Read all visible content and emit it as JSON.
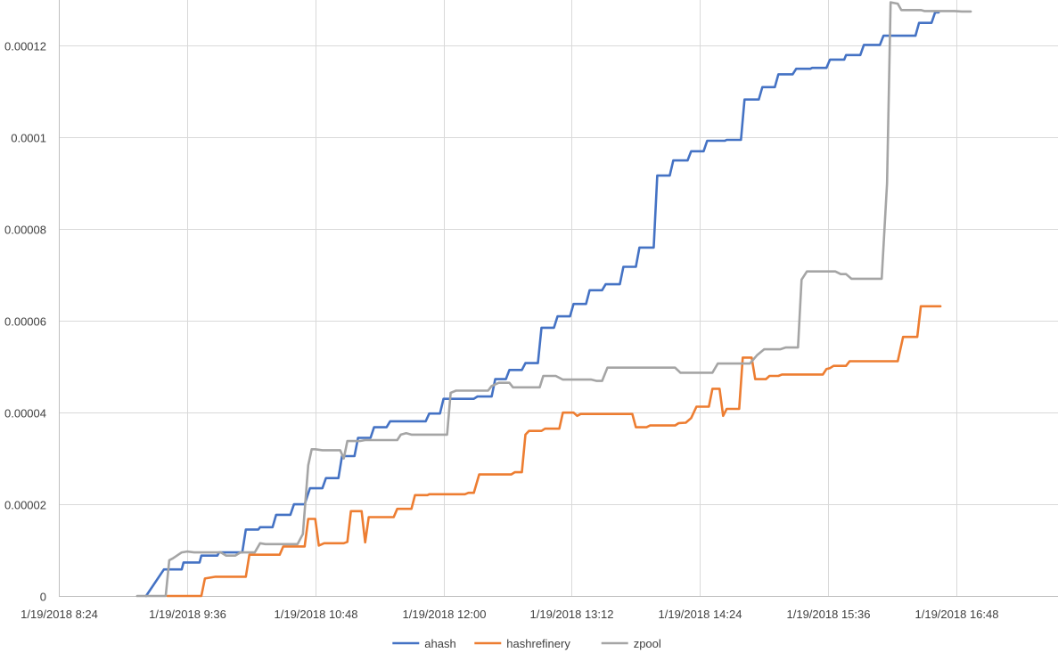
{
  "chart_data": {
    "type": "line",
    "title": "",
    "xlabel": "",
    "ylabel": "",
    "grid": true,
    "legend_position": "bottom",
    "xlim": [
      "1/19/2018 8:24",
      "1/19/2018 17:45"
    ],
    "ylim": [
      0,
      0.00013
    ],
    "y_ticks": [
      {
        "value": 0,
        "label": "0"
      },
      {
        "value": 2e-05,
        "label": "0.00002"
      },
      {
        "value": 4e-05,
        "label": "0.00004"
      },
      {
        "value": 6e-05,
        "label": "0.00006"
      },
      {
        "value": 8e-05,
        "label": "0.00008"
      },
      {
        "value": 0.0001,
        "label": "0.0001"
      },
      {
        "value": 0.00012,
        "label": "0.00012"
      }
    ],
    "x_ticks": [
      {
        "value": "1/19/2018 8:24",
        "label": "1/19/2018 8:24"
      },
      {
        "value": "1/19/2018 9:36",
        "label": "1/19/2018 9:36"
      },
      {
        "value": "1/19/2018 10:48",
        "label": "1/19/2018 10:48"
      },
      {
        "value": "1/19/2018 12:00",
        "label": "1/19/2018 12:00"
      },
      {
        "value": "1/19/2018 13:12",
        "label": "1/19/2018 13:12"
      },
      {
        "value": "1/19/2018 14:24",
        "label": "1/19/2018 14:24"
      },
      {
        "value": "1/19/2018 15:36",
        "label": "1/19/2018 15:36"
      },
      {
        "value": "1/19/2018 16:48",
        "label": "1/19/2018 16:48"
      }
    ],
    "series": [
      {
        "name": "ahash",
        "color": "#4472C4",
        "points": [
          [
            "1/19/2018 9:13",
            0
          ],
          [
            "1/19/2018 9:23",
            5.8e-06
          ],
          [
            "1/19/2018 9:33",
            5.8e-06
          ],
          [
            "1/19/2018 9:34",
            7.3e-06
          ],
          [
            "1/19/2018 9:43",
            7.3e-06
          ],
          [
            "1/19/2018 9:44",
            8.8e-06
          ],
          [
            "1/19/2018 9:53",
            8.8e-06
          ],
          [
            "1/19/2018 9:54",
            9.5e-06
          ],
          [
            "1/19/2018 10:07",
            9.5e-06
          ],
          [
            "1/19/2018 10:09",
            1.45e-05
          ],
          [
            "1/19/2018 10:16",
            1.45e-05
          ],
          [
            "1/19/2018 10:17",
            1.5e-05
          ],
          [
            "1/19/2018 10:24",
            1.5e-05
          ],
          [
            "1/19/2018 10:26",
            1.77e-05
          ],
          [
            "1/19/2018 10:34",
            1.77e-05
          ],
          [
            "1/19/2018 10:36",
            2e-05
          ],
          [
            "1/19/2018 10:42",
            2e-05
          ],
          [
            "1/19/2018 10:45",
            2.35e-05
          ],
          [
            "1/19/2018 10:52",
            2.35e-05
          ],
          [
            "1/19/2018 10:54",
            2.57e-05
          ],
          [
            "1/19/2018 11:01",
            2.57e-05
          ],
          [
            "1/19/2018 11:03",
            3.05e-05
          ],
          [
            "1/19/2018 11:10",
            3.05e-05
          ],
          [
            "1/19/2018 11:12",
            3.45e-05
          ],
          [
            "1/19/2018 11:19",
            3.45e-05
          ],
          [
            "1/19/2018 11:21",
            3.68e-05
          ],
          [
            "1/19/2018 11:28",
            3.68e-05
          ],
          [
            "1/19/2018 11:30",
            3.81e-05
          ],
          [
            "1/19/2018 11:50",
            3.81e-05
          ],
          [
            "1/19/2018 11:52",
            3.98e-05
          ],
          [
            "1/19/2018 11:58",
            3.98e-05
          ],
          [
            "1/19/2018 12:00",
            4.3e-05
          ],
          [
            "1/19/2018 12:17",
            4.3e-05
          ],
          [
            "1/19/2018 12:19",
            4.35e-05
          ],
          [
            "1/19/2018 12:27",
            4.35e-05
          ],
          [
            "1/19/2018 12:29",
            4.73e-05
          ],
          [
            "1/19/2018 12:35",
            4.73e-05
          ],
          [
            "1/19/2018 12:37",
            4.93e-05
          ],
          [
            "1/19/2018 12:44",
            4.93e-05
          ],
          [
            "1/19/2018 12:46",
            5.08e-05
          ],
          [
            "1/19/2018 12:53",
            5.08e-05
          ],
          [
            "1/19/2018 12:55",
            5.85e-05
          ],
          [
            "1/19/2018 13:02",
            5.85e-05
          ],
          [
            "1/19/2018 13:04",
            6.1e-05
          ],
          [
            "1/19/2018 13:11",
            6.1e-05
          ],
          [
            "1/19/2018 13:13",
            6.37e-05
          ],
          [
            "1/19/2018 13:20",
            6.37e-05
          ],
          [
            "1/19/2018 13:22",
            6.67e-05
          ],
          [
            "1/19/2018 13:29",
            6.67e-05
          ],
          [
            "1/19/2018 13:31",
            6.8e-05
          ],
          [
            "1/19/2018 13:39",
            6.8e-05
          ],
          [
            "1/19/2018 13:41",
            7.18e-05
          ],
          [
            "1/19/2018 13:48",
            7.18e-05
          ],
          [
            "1/19/2018 13:50",
            7.6e-05
          ],
          [
            "1/19/2018 13:58",
            7.6e-05
          ],
          [
            "1/19/2018 14:00",
            9.17e-05
          ],
          [
            "1/19/2018 14:07",
            9.17e-05
          ],
          [
            "1/19/2018 14:09",
            9.5e-05
          ],
          [
            "1/19/2018 14:17",
            9.5e-05
          ],
          [
            "1/19/2018 14:19",
            9.7e-05
          ],
          [
            "1/19/2018 14:26",
            9.7e-05
          ],
          [
            "1/19/2018 14:28",
            9.93e-05
          ],
          [
            "1/19/2018 14:38",
            9.93e-05
          ],
          [
            "1/19/2018 14:39",
            9.95e-05
          ],
          [
            "1/19/2018 14:47",
            9.95e-05
          ],
          [
            "1/19/2018 14:49",
            0.0001083
          ],
          [
            "1/19/2018 14:57",
            0.0001083
          ],
          [
            "1/19/2018 14:59",
            0.000111
          ],
          [
            "1/19/2018 15:06",
            0.000111
          ],
          [
            "1/19/2018 15:08",
            0.0001138
          ],
          [
            "1/19/2018 15:16",
            0.0001138
          ],
          [
            "1/19/2018 15:18",
            0.000115
          ],
          [
            "1/19/2018 15:26",
            0.000115
          ],
          [
            "1/19/2018 15:27",
            0.0001152
          ],
          [
            "1/19/2018 15:35",
            0.0001152
          ],
          [
            "1/19/2018 15:37",
            0.000117
          ],
          [
            "1/19/2018 15:45",
            0.000117
          ],
          [
            "1/19/2018 15:46",
            0.000118
          ],
          [
            "1/19/2018 15:54",
            0.000118
          ],
          [
            "1/19/2018 15:56",
            0.0001202
          ],
          [
            "1/19/2018 16:05",
            0.0001202
          ],
          [
            "1/19/2018 16:07",
            0.0001222
          ],
          [
            "1/19/2018 16:25",
            0.0001222
          ],
          [
            "1/19/2018 16:27",
            0.000125
          ],
          [
            "1/19/2018 16:34",
            0.000125
          ],
          [
            "1/19/2018 16:36",
            0.0001273
          ],
          [
            "1/19/2018 16:38",
            0.0001273
          ]
        ]
      },
      {
        "name": "hashrefinery",
        "color": "#ED7D31",
        "points": [
          [
            "1/19/2018 9:25",
            0
          ],
          [
            "1/19/2018 9:44",
            0
          ],
          [
            "1/19/2018 9:46",
            3.8e-06
          ],
          [
            "1/19/2018 9:52",
            4.2e-06
          ],
          [
            "1/19/2018 10:09",
            4.2e-06
          ],
          [
            "1/19/2018 10:11",
            9e-06
          ],
          [
            "1/19/2018 10:28",
            9e-06
          ],
          [
            "1/19/2018 10:30",
            1.08e-05
          ],
          [
            "1/19/2018 10:42",
            1.08e-05
          ],
          [
            "1/19/2018 10:44",
            1.68e-05
          ],
          [
            "1/19/2018 10:48",
            1.68e-05
          ],
          [
            "1/19/2018 10:50",
            1.1e-05
          ],
          [
            "1/19/2018 10:53",
            1.15e-05
          ],
          [
            "1/19/2018 11:04",
            1.15e-05
          ],
          [
            "1/19/2018 11:06",
            1.18e-05
          ],
          [
            "1/19/2018 11:08",
            1.85e-05
          ],
          [
            "1/19/2018 11:14",
            1.85e-05
          ],
          [
            "1/19/2018 11:16",
            1.17e-05
          ],
          [
            "1/19/2018 11:18",
            1.72e-05
          ],
          [
            "1/19/2018 11:32",
            1.72e-05
          ],
          [
            "1/19/2018 11:34",
            1.9e-05
          ],
          [
            "1/19/2018 11:42",
            1.9e-05
          ],
          [
            "1/19/2018 11:44",
            2.2e-05
          ],
          [
            "1/19/2018 11:51",
            2.2e-05
          ],
          [
            "1/19/2018 11:52",
            2.22e-05
          ],
          [
            "1/19/2018 12:12",
            2.22e-05
          ],
          [
            "1/19/2018 12:14",
            2.25e-05
          ],
          [
            "1/19/2018 12:17",
            2.25e-05
          ],
          [
            "1/19/2018 12:20",
            2.65e-05
          ],
          [
            "1/19/2018 12:38",
            2.65e-05
          ],
          [
            "1/19/2018 12:40",
            2.7e-05
          ],
          [
            "1/19/2018 12:44",
            2.7e-05
          ],
          [
            "1/19/2018 12:46",
            3.52e-05
          ],
          [
            "1/19/2018 12:48",
            3.6e-05
          ],
          [
            "1/19/2018 12:55",
            3.6e-05
          ],
          [
            "1/19/2018 12:57",
            3.65e-05
          ],
          [
            "1/19/2018 13:05",
            3.65e-05
          ],
          [
            "1/19/2018 13:07",
            4e-05
          ],
          [
            "1/19/2018 13:13",
            4e-05
          ],
          [
            "1/19/2018 13:15",
            3.93e-05
          ],
          [
            "1/19/2018 13:17",
            3.97e-05
          ],
          [
            "1/19/2018 13:46",
            3.97e-05
          ],
          [
            "1/19/2018 13:48",
            3.68e-05
          ],
          [
            "1/19/2018 13:54",
            3.68e-05
          ],
          [
            "1/19/2018 13:56",
            3.72e-05
          ],
          [
            "1/19/2018 14:10",
            3.72e-05
          ],
          [
            "1/19/2018 14:12",
            3.77e-05
          ],
          [
            "1/19/2018 14:16",
            3.78e-05
          ],
          [
            "1/19/2018 14:19",
            3.88e-05
          ],
          [
            "1/19/2018 14:22",
            4.13e-05
          ],
          [
            "1/19/2018 14:29",
            4.13e-05
          ],
          [
            "1/19/2018 14:31",
            4.52e-05
          ],
          [
            "1/19/2018 14:35",
            4.52e-05
          ],
          [
            "1/19/2018 14:37",
            3.93e-05
          ],
          [
            "1/19/2018 14:39",
            4.08e-05
          ],
          [
            "1/19/2018 14:46",
            4.08e-05
          ],
          [
            "1/19/2018 14:48",
            5.2e-05
          ],
          [
            "1/19/2018 14:53",
            5.2e-05
          ],
          [
            "1/19/2018 14:55",
            4.73e-05
          ],
          [
            "1/19/2018 15:01",
            4.73e-05
          ],
          [
            "1/19/2018 15:03",
            4.8e-05
          ],
          [
            "1/19/2018 15:08",
            4.8e-05
          ],
          [
            "1/19/2018 15:10",
            4.83e-05
          ],
          [
            "1/19/2018 15:33",
            4.83e-05
          ],
          [
            "1/19/2018 15:35",
            4.95e-05
          ],
          [
            "1/19/2018 15:37",
            4.97e-05
          ],
          [
            "1/19/2018 15:39",
            5.02e-05
          ],
          [
            "1/19/2018 15:46",
            5.02e-05
          ],
          [
            "1/19/2018 15:48",
            5.12e-05
          ],
          [
            "1/19/2018 16:15",
            5.12e-05
          ],
          [
            "1/19/2018 16:18",
            5.65e-05
          ],
          [
            "1/19/2018 16:26",
            5.65e-05
          ],
          [
            "1/19/2018 16:28",
            6.32e-05
          ],
          [
            "1/19/2018 16:39",
            6.32e-05
          ]
        ]
      },
      {
        "name": "zpool",
        "color": "#A5A5A5",
        "points": [
          [
            "1/19/2018 9:08",
            0
          ],
          [
            "1/19/2018 9:24",
            0
          ],
          [
            "1/19/2018 9:26",
            7.8e-06
          ],
          [
            "1/19/2018 9:28",
            8.2e-06
          ],
          [
            "1/19/2018 9:33",
            9.5e-06
          ],
          [
            "1/19/2018 9:36",
            9.7e-06
          ],
          [
            "1/19/2018 9:40",
            9.5e-06
          ],
          [
            "1/19/2018 9:55",
            9.5e-06
          ],
          [
            "1/19/2018 9:58",
            8.8e-06
          ],
          [
            "1/19/2018 10:03",
            8.8e-06
          ],
          [
            "1/19/2018 10:06",
            9.5e-06
          ],
          [
            "1/19/2018 10:14",
            9.5e-06
          ],
          [
            "1/19/2018 10:17",
            1.15e-05
          ],
          [
            "1/19/2018 10:20",
            1.13e-05
          ],
          [
            "1/19/2018 10:38",
            1.13e-05
          ],
          [
            "1/19/2018 10:41",
            1.35e-05
          ],
          [
            "1/19/2018 10:44",
            2.85e-05
          ],
          [
            "1/19/2018 10:46",
            3.2e-05
          ],
          [
            "1/19/2018 10:48",
            3.2e-05
          ],
          [
            "1/19/2018 10:52",
            3.18e-05
          ],
          [
            "1/19/2018 11:02",
            3.18e-05
          ],
          [
            "1/19/2018 11:04",
            3e-05
          ],
          [
            "1/19/2018 11:06",
            3.38e-05
          ],
          [
            "1/19/2018 11:13",
            3.38e-05
          ],
          [
            "1/19/2018 11:16",
            3.4e-05
          ],
          [
            "1/19/2018 11:34",
            3.4e-05
          ],
          [
            "1/19/2018 11:36",
            3.52e-05
          ],
          [
            "1/19/2018 11:39",
            3.55e-05
          ],
          [
            "1/19/2018 11:42",
            3.52e-05
          ],
          [
            "1/19/2018 12:02",
            3.52e-05
          ],
          [
            "1/19/2018 12:04",
            4.43e-05
          ],
          [
            "1/19/2018 12:07",
            4.48e-05
          ],
          [
            "1/19/2018 12:25",
            4.48e-05
          ],
          [
            "1/19/2018 12:27",
            4.58e-05
          ],
          [
            "1/19/2018 12:31",
            4.65e-05
          ],
          [
            "1/19/2018 12:37",
            4.65e-05
          ],
          [
            "1/19/2018 12:39",
            4.55e-05
          ],
          [
            "1/19/2018 12:54",
            4.55e-05
          ],
          [
            "1/19/2018 12:56",
            4.8e-05
          ],
          [
            "1/19/2018 13:03",
            4.8e-05
          ],
          [
            "1/19/2018 13:07",
            4.72e-05
          ],
          [
            "1/19/2018 13:23",
            4.72e-05
          ],
          [
            "1/19/2018 13:26",
            4.69e-05
          ],
          [
            "1/19/2018 13:29",
            4.69e-05
          ],
          [
            "1/19/2018 13:32",
            4.98e-05
          ],
          [
            "1/19/2018 14:10",
            4.98e-05
          ],
          [
            "1/19/2018 14:13",
            4.87e-05
          ],
          [
            "1/19/2018 14:31",
            4.87e-05
          ],
          [
            "1/19/2018 14:34",
            5.07e-05
          ],
          [
            "1/19/2018 14:52",
            5.07e-05
          ],
          [
            "1/19/2018 14:56",
            5.25e-05
          ],
          [
            "1/19/2018 15:00",
            5.38e-05
          ],
          [
            "1/19/2018 15:09",
            5.38e-05
          ],
          [
            "1/19/2018 15:12",
            5.42e-05
          ],
          [
            "1/19/2018 15:19",
            5.42e-05
          ],
          [
            "1/19/2018 15:21",
            6.9e-05
          ],
          [
            "1/19/2018 15:24",
            7.08e-05
          ],
          [
            "1/19/2018 15:40",
            7.08e-05
          ],
          [
            "1/19/2018 15:43",
            7.02e-05
          ],
          [
            "1/19/2018 15:46",
            7.02e-05
          ],
          [
            "1/19/2018 15:49",
            6.92e-05
          ],
          [
            "1/19/2018 16:06",
            6.92e-05
          ],
          [
            "1/19/2018 16:09",
            9e-05
          ],
          [
            "1/19/2018 16:11",
            0.0001295
          ],
          [
            "1/19/2018 16:15",
            0.0001292
          ],
          [
            "1/19/2018 16:17",
            0.0001278
          ],
          [
            "1/19/2018 16:28",
            0.0001278
          ],
          [
            "1/19/2018 16:30",
            0.0001276
          ],
          [
            "1/19/2018 16:47",
            0.0001276
          ],
          [
            "1/19/2018 16:51",
            0.0001275
          ],
          [
            "1/19/2018 16:56",
            0.0001275
          ]
        ]
      }
    ]
  }
}
